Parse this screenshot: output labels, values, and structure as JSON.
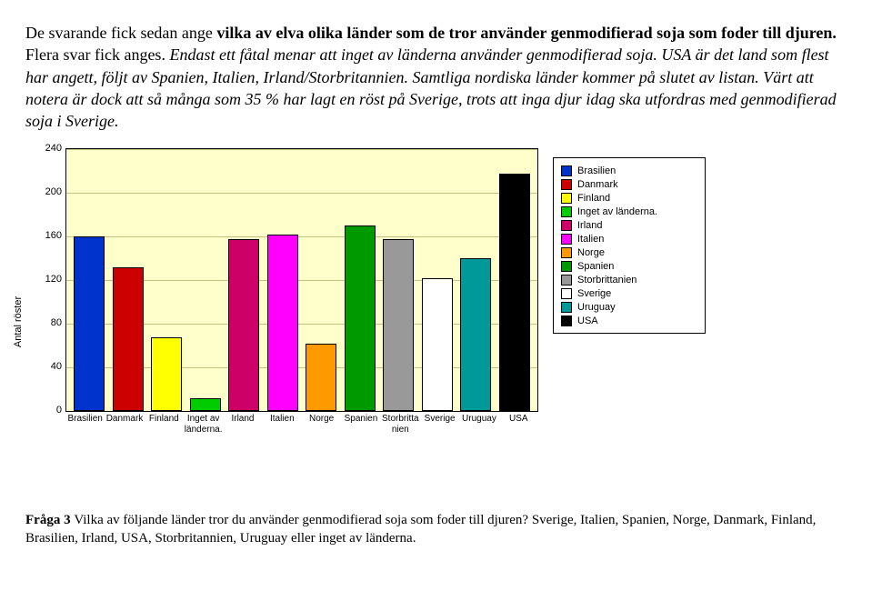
{
  "para1": {
    "t1": "De svarande fick sedan ange ",
    "b1": "vilka av elva olika länder som de tror använder genmodifierad soja som foder till djuren.",
    "t2": " Flera svar fick anges. ",
    "i1": "Endast ett fåtal menar att inget av länderna använder genmodifierad soja. USA är det land som flest har angett, följt av Spanien, Italien, Irland/Storbritannien. Samtliga nordiska länder kommer på slutet av listan. Värt att notera är dock att så många som 35 % har lagt en röst på Sverige, trots att inga djur idag ska utfordras med genmodifierad soja i Sverige."
  },
  "chart": {
    "type": "bar",
    "background_color": "#ffffcc",
    "grid_color": "#c0c080",
    "ylabel": "Antal röster",
    "ylim": [
      0,
      240
    ],
    "ytick_step": 40,
    "categories": [
      "Brasilien",
      "Danmark",
      "Finland",
      "Inget av länderna.",
      "Irland",
      "Italien",
      "Norge",
      "Spanien",
      "Storbrittanien",
      "Sverige",
      "Uruguay",
      "USA"
    ],
    "values": [
      160,
      132,
      68,
      12,
      158,
      162,
      62,
      170,
      158,
      122,
      140,
      218
    ],
    "bar_colors": [
      "#0033cc",
      "#cc0000",
      "#ffff00",
      "#00cc00",
      "#cc0066",
      "#ff00ff",
      "#ff9900",
      "#009900",
      "#999999",
      "#ffffff",
      "#009999",
      "#000000"
    ]
  },
  "legend": {
    "items": [
      {
        "label": "Brasilien",
        "color": "#0033cc"
      },
      {
        "label": "Danmark",
        "color": "#cc0000"
      },
      {
        "label": "Finland",
        "color": "#ffff00"
      },
      {
        "label": "Inget av länderna.",
        "color": "#00cc00"
      },
      {
        "label": "Irland",
        "color": "#cc0066"
      },
      {
        "label": "Italien",
        "color": "#ff00ff"
      },
      {
        "label": "Norge",
        "color": "#ff9900"
      },
      {
        "label": "Spanien",
        "color": "#009900"
      },
      {
        "label": "Storbrittanien",
        "color": "#999999"
      },
      {
        "label": "Sverige",
        "color": "#ffffff"
      },
      {
        "label": "Uruguay",
        "color": "#009999"
      },
      {
        "label": "USA",
        "color": "#000000"
      }
    ]
  },
  "caption": {
    "b": "Fråga 3 ",
    "t1": "Vilka av följande länder tror du använder genmodifierad soja som foder till djuren? ",
    "t2": "Sverige, Italien, Spanien, Norge, Danmark, Finland, Brasilien, Irland, USA, Storbritannien, Uruguay eller inget av länderna."
  }
}
